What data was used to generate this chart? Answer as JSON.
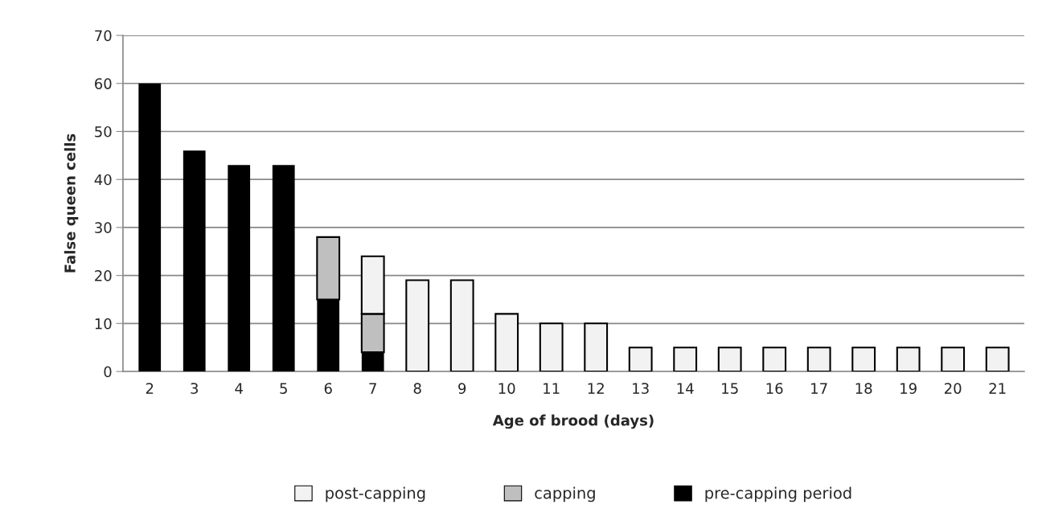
{
  "chart_data": {
    "type": "bar",
    "stacked": true,
    "xlabel": "Age of brood (days)",
    "ylabel": "False queen cells",
    "categories": [
      "2",
      "3",
      "4",
      "5",
      "6",
      "7",
      "8",
      "9",
      "10",
      "11",
      "12",
      "13",
      "14",
      "15",
      "16",
      "17",
      "18",
      "19",
      "20",
      "21"
    ],
    "series": [
      {
        "name": "pre-capping period",
        "color": "#000000",
        "values": [
          60,
          46,
          43,
          43,
          15,
          4,
          null,
          null,
          null,
          null,
          null,
          null,
          null,
          null,
          null,
          null,
          null,
          null,
          null,
          null
        ]
      },
      {
        "name": "capping",
        "color": "#bfbfbf",
        "values": [
          null,
          null,
          null,
          null,
          13,
          8,
          null,
          null,
          null,
          null,
          null,
          null,
          null,
          null,
          null,
          null,
          null,
          null,
          null,
          null
        ]
      },
      {
        "name": "post-capping",
        "color": "#f2f2f2",
        "values": [
          null,
          null,
          null,
          null,
          null,
          12,
          19,
          19,
          12,
          10,
          10,
          5,
          5,
          5,
          5,
          5,
          5,
          5,
          5,
          5
        ]
      }
    ],
    "ylim": [
      0,
      70
    ],
    "yticks": [
      0,
      10,
      20,
      30,
      40,
      50,
      60,
      70
    ],
    "grid": "y",
    "legend": "bottom"
  }
}
